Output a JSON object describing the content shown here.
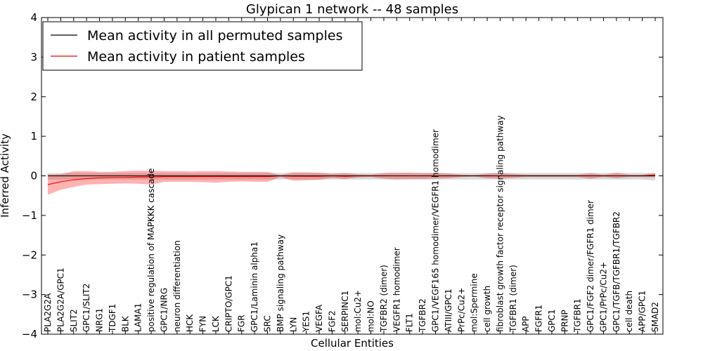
{
  "chart_data": {
    "type": "line",
    "title": "Glypican 1 network -- 48 samples",
    "xlabel": "Cellular Entities",
    "ylabel": "Inferred Activity",
    "ylim": [
      -4,
      4
    ],
    "yticks": [
      -4,
      -3,
      -2,
      -1,
      0,
      1,
      2,
      3,
      4
    ],
    "ytick_labels": [
      "−4",
      "−3",
      "−2",
      "−1",
      "0",
      "1",
      "2",
      "3",
      "4"
    ],
    "legend_position": "top-left",
    "categories": [
      "PLA2G2A",
      "PLA2G2A/GPC1",
      "SLIT2",
      "GPC1/SLIT2",
      "NRG1",
      "TDGF1",
      "BLK",
      "LAMA1",
      "positive regulation of MAPKKK cascade",
      "GPC1/NRG",
      "neuron differentiation",
      "HCK",
      "FYN",
      "LCK",
      "CRIPTO/GPC1",
      "FGR",
      "GPC1/Laminin alpha1",
      "SRC",
      "BMP signaling pathway",
      "LYN",
      "YES1",
      "VEGFA",
      "FGF2",
      "SERPINC1",
      "mol:Cu2+",
      "mol:NO",
      "TGFBR2 (dimer)",
      "VEGFR1 homodimer",
      "FLT1",
      "TGFBR2",
      "GPC1/VEGF165 homodimer/VEGFR1 homodimer",
      "ATIII/GPC1",
      "PrPc/Cu2+",
      "mol:Spermine",
      "cell growth",
      "fibroblast growth factor receptor signaling pathway",
      "TGFBR1 (dimer)",
      "APP",
      "FGFR1",
      "GPC1",
      "PRNP",
      "TGFBR1",
      "GPC1/FGF2 dimer/FGFR1 dimer",
      "GPC1/PrPc/Cu2+",
      "GPC1/TGFB/TGFBR1/TGFBR2",
      "cell death",
      "APP/GPC1",
      "SMAD2"
    ],
    "series": [
      {
        "name": "Mean activity in all permuted samples",
        "color": "#000000",
        "values": [
          0.0,
          0.0,
          0.0,
          0.0,
          0.0,
          0.0,
          0.0,
          0.0,
          0.0,
          0.0,
          0.0,
          0.0,
          0.0,
          0.0,
          0.0,
          0.0,
          0.0,
          0.0,
          0.0,
          0.0,
          0.0,
          0.0,
          0.0,
          0.0,
          0.0,
          0.0,
          0.0,
          0.0,
          0.0,
          0.0,
          0.0,
          0.0,
          0.0,
          0.0,
          0.0,
          0.0,
          0.0,
          0.0,
          0.0,
          0.0,
          0.0,
          0.0,
          0.0,
          0.0,
          0.0,
          0.0,
          0.0,
          0.0
        ],
        "upper": [
          0.07,
          0.07,
          0.07,
          0.07,
          0.07,
          0.07,
          0.07,
          0.07,
          0.07,
          0.07,
          0.07,
          0.07,
          0.07,
          0.07,
          0.07,
          0.07,
          0.07,
          0.07,
          0.07,
          0.07,
          0.07,
          0.07,
          0.07,
          0.07,
          0.07,
          0.07,
          0.07,
          0.07,
          0.07,
          0.07,
          0.07,
          0.07,
          0.07,
          0.07,
          0.07,
          0.07,
          0.07,
          0.07,
          0.07,
          0.07,
          0.07,
          0.07,
          0.07,
          0.07,
          0.07,
          0.07,
          0.07,
          0.07
        ],
        "lower": [
          -0.09,
          -0.09,
          -0.09,
          -0.09,
          -0.09,
          -0.09,
          -0.09,
          -0.09,
          -0.09,
          -0.09,
          -0.09,
          -0.09,
          -0.09,
          -0.09,
          -0.09,
          -0.09,
          -0.09,
          -0.09,
          -0.09,
          -0.09,
          -0.09,
          -0.09,
          -0.09,
          -0.09,
          -0.09,
          -0.09,
          -0.09,
          -0.09,
          -0.09,
          -0.09,
          -0.09,
          -0.09,
          -0.09,
          -0.09,
          -0.09,
          -0.09,
          -0.09,
          -0.09,
          -0.09,
          -0.09,
          -0.09,
          -0.09,
          -0.09,
          -0.09,
          -0.09,
          -0.09,
          -0.09,
          -0.12
        ]
      },
      {
        "name": "Mean activity in patient samples",
        "color": "#ff0000",
        "values": [
          -0.22,
          -0.15,
          -0.1,
          -0.07,
          -0.05,
          -0.04,
          -0.04,
          -0.03,
          -0.03,
          -0.02,
          -0.02,
          -0.02,
          -0.02,
          -0.02,
          -0.02,
          -0.02,
          -0.02,
          -0.02,
          0.0,
          -0.01,
          -0.01,
          -0.01,
          0.0,
          -0.01,
          0.0,
          0.0,
          0.0,
          0.0,
          0.0,
          0.0,
          0.0,
          0.0,
          0.0,
          0.0,
          0.0,
          0.0,
          0.0,
          0.0,
          0.0,
          0.0,
          0.0,
          0.0,
          0.0,
          0.0,
          0.0,
          0.0,
          0.0,
          0.02
        ],
        "upper": [
          0.03,
          0.04,
          0.12,
          0.12,
          0.1,
          0.1,
          0.12,
          0.13,
          0.13,
          0.12,
          0.12,
          0.11,
          0.12,
          0.12,
          0.11,
          0.1,
          0.1,
          0.1,
          0.02,
          0.09,
          0.09,
          0.08,
          0.05,
          0.07,
          0.04,
          0.03,
          0.07,
          0.08,
          0.08,
          0.07,
          0.07,
          0.06,
          0.03,
          0.02,
          0.06,
          0.07,
          0.05,
          0.03,
          0.03,
          0.03,
          0.03,
          0.03,
          0.07,
          0.03,
          0.08,
          0.03,
          0.03,
          0.07
        ],
        "lower": [
          -0.48,
          -0.35,
          -0.28,
          -0.22,
          -0.21,
          -0.2,
          -0.19,
          -0.2,
          -0.22,
          -0.15,
          -0.15,
          -0.15,
          -0.16,
          -0.17,
          -0.15,
          -0.14,
          -0.15,
          -0.15,
          -0.03,
          -0.12,
          -0.11,
          -0.1,
          -0.05,
          -0.08,
          -0.04,
          -0.03,
          -0.07,
          -0.09,
          -0.08,
          -0.08,
          -0.07,
          -0.06,
          -0.03,
          -0.02,
          -0.06,
          -0.07,
          -0.05,
          -0.03,
          -0.03,
          -0.03,
          -0.03,
          -0.03,
          -0.07,
          -0.03,
          -0.06,
          -0.03,
          -0.03,
          -0.04
        ]
      }
    ]
  }
}
